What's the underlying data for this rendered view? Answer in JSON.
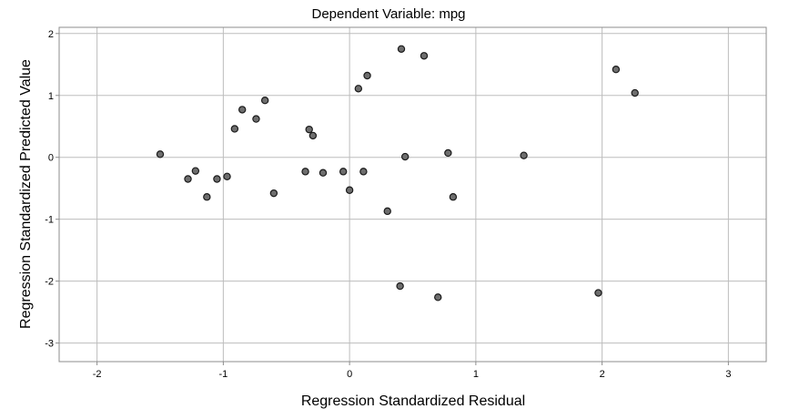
{
  "chart_data": {
    "type": "scatter",
    "title": "Dependent Variable: mpg",
    "xlabel": "Regression Standardized Residual",
    "ylabel": "Regression Standardized Predicted Value",
    "xlim": [
      -2.3,
      3.3
    ],
    "ylim": [
      -3.3,
      2.1
    ],
    "xticks": [
      -2,
      -1,
      0,
      1,
      2,
      3
    ],
    "yticks": [
      -3,
      -2,
      -1,
      0,
      1,
      2
    ],
    "grid": true,
    "points": [
      {
        "x": -1.5,
        "y": 0.05
      },
      {
        "x": -1.28,
        "y": -0.35
      },
      {
        "x": -1.22,
        "y": -0.22
      },
      {
        "x": -1.13,
        "y": -0.64
      },
      {
        "x": -1.05,
        "y": -0.35
      },
      {
        "x": -0.97,
        "y": -0.31
      },
      {
        "x": -0.91,
        "y": 0.46
      },
      {
        "x": -0.85,
        "y": 0.77
      },
      {
        "x": -0.74,
        "y": 0.62
      },
      {
        "x": -0.67,
        "y": 0.92
      },
      {
        "x": -0.6,
        "y": -0.58
      },
      {
        "x": -0.35,
        "y": -0.23
      },
      {
        "x": -0.32,
        "y": 0.45
      },
      {
        "x": -0.29,
        "y": 0.35
      },
      {
        "x": -0.21,
        "y": -0.25
      },
      {
        "x": -0.05,
        "y": -0.23
      },
      {
        "x": 0.0,
        "y": -0.53
      },
      {
        "x": 0.07,
        "y": 1.11
      },
      {
        "x": 0.11,
        "y": -0.23
      },
      {
        "x": 0.14,
        "y": 1.32
      },
      {
        "x": 0.3,
        "y": -0.87
      },
      {
        "x": 0.4,
        "y": -2.08
      },
      {
        "x": 0.41,
        "y": 1.75
      },
      {
        "x": 0.44,
        "y": 0.01
      },
      {
        "x": 0.59,
        "y": 1.64
      },
      {
        "x": 0.7,
        "y": -2.26
      },
      {
        "x": 0.78,
        "y": 0.07
      },
      {
        "x": 0.82,
        "y": -0.64
      },
      {
        "x": 1.38,
        "y": 0.03
      },
      {
        "x": 1.97,
        "y": -2.19
      },
      {
        "x": 2.11,
        "y": 1.42
      },
      {
        "x": 2.26,
        "y": 1.04
      }
    ]
  }
}
